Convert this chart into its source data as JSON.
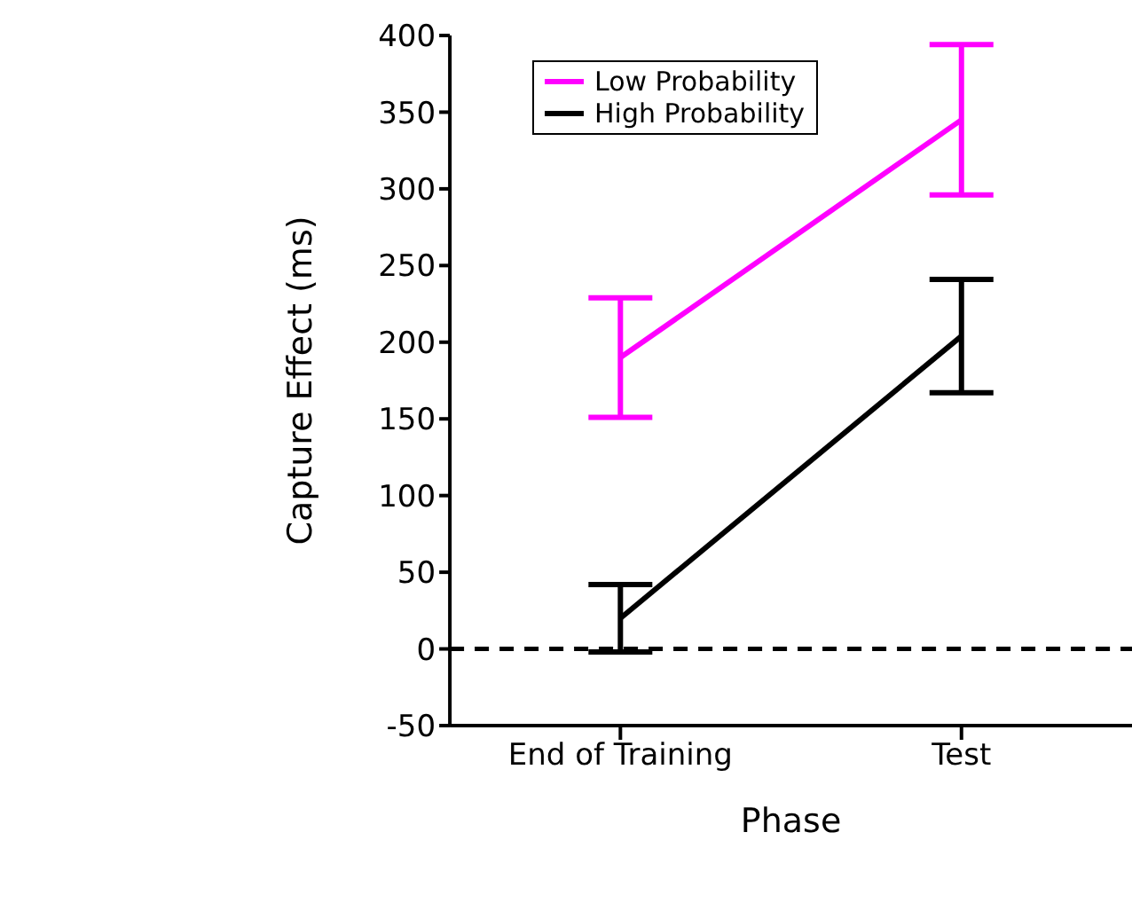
{
  "chart_data": {
    "type": "line",
    "xlabel": "Phase",
    "ylabel": "Capture Effect (ms)",
    "categories": [
      "End of Training",
      "Test"
    ],
    "series": [
      {
        "name": "Low Probability",
        "color": "#ff00ff",
        "values": [
          190,
          345
        ],
        "errors": [
          39,
          49
        ]
      },
      {
        "name": "High Probability",
        "color": "#000000",
        "values": [
          20,
          204
        ],
        "errors": [
          22,
          37
        ]
      }
    ],
    "ylim": [
      -50,
      400
    ],
    "yticks": [
      -50,
      0,
      50,
      100,
      150,
      200,
      250,
      300,
      350,
      400
    ],
    "ref_lines": [
      {
        "axis": "y",
        "value": 0,
        "color": "#000000",
        "line_style": "dashed"
      }
    ],
    "legend": "top",
    "marker": "none",
    "line_style": "solid",
    "grid": false
  }
}
